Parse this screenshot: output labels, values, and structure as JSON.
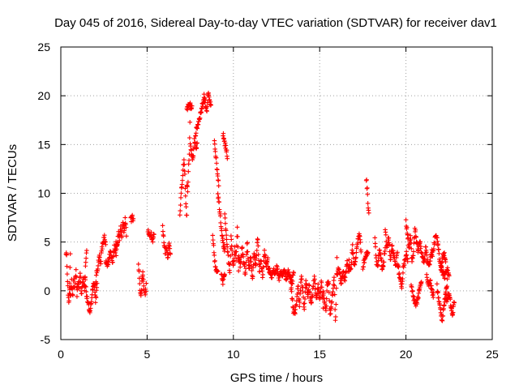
{
  "chart_data": {
    "type": "scatter",
    "title": "Day 045 of 2016, Sidereal Day-to-day VTEC variation (SDTVAR) for receiver dav1",
    "xlabel": "GPS time / hours",
    "ylabel": "SDTVAR / TECUs",
    "xlim": [
      0,
      25
    ],
    "ylim": [
      -5,
      25
    ],
    "xticks": [
      "0",
      "5",
      "10",
      "15",
      "20",
      "25"
    ],
    "yticks": [
      "-5",
      "0",
      "5",
      "10",
      "15",
      "20",
      "25"
    ],
    "grid": true,
    "marker": "plus",
    "series": [
      {
        "name": "SDTVAR",
        "color": "#ff0000",
        "segments": [
          {
            "x0": 0.3,
            "x1": 0.55,
            "y": [
              4.0,
              3.3,
              1.5,
              -0.5,
              -1.5,
              0.5,
              3.5
            ]
          },
          {
            "x0": 0.5,
            "x1": 1.5,
            "y": [
              0.5,
              -0.5,
              1.0,
              -0.8,
              1.5,
              0.0,
              2.2,
              -0.4,
              1.0,
              0.2,
              2.0,
              -0.5,
              0.8,
              1.2,
              0.0,
              3.0,
              4.3
            ]
          },
          {
            "x0": 1.4,
            "x1": 2.1,
            "y": [
              1.5,
              -0.5,
              -1.2,
              -2.3,
              -1.5,
              0.2,
              1.0,
              -1.0,
              0.5
            ]
          },
          {
            "x0": 2.0,
            "x1": 2.6,
            "y": [
              0.5,
              1.8,
              2.5,
              3.6,
              2.8,
              4.2,
              5.0,
              5.5,
              4.5
            ]
          },
          {
            "x0": 2.6,
            "x1": 3.3,
            "y": [
              3.0,
              2.5,
              3.5,
              4.0,
              3.0,
              4.5,
              3.8,
              5.0
            ]
          },
          {
            "x0": 3.2,
            "x1": 3.8,
            "y": [
              5.0,
              4.5,
              6.0,
              5.2,
              6.5,
              5.5,
              7.0,
              6.0,
              7.5,
              5.8
            ]
          },
          {
            "x0": 4.05,
            "x1": 4.2,
            "y": [
              7.5,
              7.3,
              7.6,
              7.4
            ]
          },
          {
            "x0": 4.5,
            "x1": 4.75,
            "y": [
              2.5,
              1.5,
              0.0,
              -0.7,
              1.0,
              2.0
            ]
          },
          {
            "x0": 4.75,
            "x1": 4.95,
            "y": [
              1.5,
              0.5,
              -0.5,
              0.5
            ]
          },
          {
            "x0": 5.05,
            "x1": 5.4,
            "y": [
              6.2,
              5.5,
              6.0,
              5.2,
              5.8
            ]
          },
          {
            "x0": 5.9,
            "x1": 6.35,
            "y": [
              6.5,
              5.0,
              4.0,
              4.5,
              3.5,
              4.8,
              3.8
            ]
          },
          {
            "x0": 6.9,
            "x1": 7.3,
            "y": [
              8.0,
              9.5,
              10.8,
              11.8,
              13.5,
              12.0,
              9.0,
              7.5
            ]
          },
          {
            "x0": 7.3,
            "x1": 7.5,
            "y": [
              11.0,
              10.2,
              12.5,
              14.2,
              19.0
            ]
          },
          {
            "x0": 7.3,
            "x1": 7.6,
            "y": [
              18.5,
              19.2,
              18.8,
              19.0
            ]
          },
          {
            "x0": 7.5,
            "x1": 7.9,
            "y": [
              15.0,
              14.0,
              13.5,
              15.5,
              14.5,
              15.2
            ]
          },
          {
            "x0": 7.8,
            "x1": 8.3,
            "y": [
              16.0,
              16.8,
              17.5,
              18.2,
              19.0,
              19.8
            ]
          },
          {
            "x0": 8.3,
            "x1": 8.7,
            "y": [
              20.0,
              19.2,
              18.5,
              20.2,
              19.5,
              18.8
            ]
          },
          {
            "x0": 8.8,
            "x1": 9.1,
            "y": [
              5.5,
              4.0,
              2.5,
              1.8,
              2.2
            ]
          },
          {
            "x0": 8.9,
            "x1": 9.15,
            "y": [
              15.5,
              13.0,
              11.0
            ]
          },
          {
            "x0": 9.1,
            "x1": 9.5,
            "y": [
              10.0,
              8.5,
              6.5,
              5.0,
              4.0
            ]
          },
          {
            "x0": 9.3,
            "x1": 9.5,
            "y": [
              1.5,
              0.8,
              1.8
            ]
          },
          {
            "x0": 9.4,
            "x1": 9.65,
            "y": [
              16.0,
              15.0,
              13.8
            ]
          },
          {
            "x0": 9.5,
            "x1": 10.3,
            "y": [
              8.0,
              6.0,
              4.5,
              3.0,
              2.0,
              5.5,
              3.5,
              2.5,
              4.5,
              3.0,
              6.5,
              2.0
            ]
          },
          {
            "x0": 10.3,
            "x1": 12.0,
            "y": [
              3.5,
              2.5,
              4.5,
              3.0,
              1.5,
              5.0,
              2.0,
              3.5,
              1.0,
              4.0,
              2.5,
              5.5,
              2.0,
              3.0,
              1.5,
              4.0,
              2.5,
              3.5
            ]
          },
          {
            "x0": 12.0,
            "x1": 13.5,
            "y": [
              2.5,
              2.0,
              1.5,
              2.2,
              1.8,
              2.5,
              1.2,
              2.0,
              1.5,
              2.3,
              1.0,
              2.0,
              1.5,
              0.8,
              2.0
            ]
          },
          {
            "x0": 13.3,
            "x1": 14.2,
            "y": [
              1.0,
              -0.5,
              -2.0,
              -2.5,
              -1.0,
              0.5,
              -1.5,
              1.5,
              0.0,
              -2.0,
              1.0
            ]
          },
          {
            "x0": 14.2,
            "x1": 15.2,
            "y": [
              1.0,
              -0.5,
              0.5,
              -1.5,
              0.0,
              1.5,
              -1.0,
              0.5,
              -0.8,
              1.0,
              -1.5
            ]
          },
          {
            "x0": 15.2,
            "x1": 16.0,
            "y": [
              0.0,
              -1.0,
              -2.0,
              0.5,
              1.0,
              -2.5,
              -1.5,
              0.0,
              1.5,
              -3.5,
              3.2
            ]
          },
          {
            "x0": 16.0,
            "x1": 16.7,
            "y": [
              1.5,
              2.5,
              0.8,
              2.0,
              1.0,
              3.0,
              2.0
            ]
          },
          {
            "x0": 16.7,
            "x1": 17.4,
            "y": [
              3.0,
              2.0,
              4.5,
              2.5,
              3.5,
              5.0,
              6.0,
              4.0
            ]
          },
          {
            "x0": 17.5,
            "x1": 17.8,
            "y": [
              2.5,
              3.5,
              4.0
            ]
          },
          {
            "x0": 17.7,
            "x1": 17.85,
            "y": [
              11.5,
              10.5,
              9.0,
              8.0
            ]
          },
          {
            "x0": 18.2,
            "x1": 18.8,
            "y": [
              5.5,
              3.0,
              2.5,
              4.0,
              3.5,
              2.0,
              3.0,
              4.5
            ]
          },
          {
            "x0": 18.8,
            "x1": 19.5,
            "y": [
              6.0,
              4.5,
              5.5,
              3.0,
              4.5,
              3.5,
              2.5,
              4.0
            ]
          },
          {
            "x0": 19.5,
            "x1": 20.1,
            "y": [
              3.0,
              2.0,
              1.0,
              0.0,
              2.5,
              3.0,
              4.0,
              2.8
            ]
          },
          {
            "x0": 20.0,
            "x1": 20.7,
            "y": [
              7.0,
              6.0,
              4.5,
              5.5,
              3.0,
              4.0,
              6.5,
              5.0,
              4.2
            ]
          },
          {
            "x0": 20.3,
            "x1": 20.9,
            "y": [
              0.5,
              -0.5,
              -1.5,
              -1.0,
              0.0,
              1.0
            ]
          },
          {
            "x0": 20.7,
            "x1": 21.5,
            "y": [
              4.0,
              5.0,
              3.5,
              3.0,
              4.5,
              2.5,
              3.0,
              4.0
            ]
          },
          {
            "x0": 21.2,
            "x1": 21.6,
            "y": [
              1.5,
              0.5,
              1.0,
              0.0,
              -0.5
            ]
          },
          {
            "x0": 21.5,
            "x1": 22.3,
            "y": [
              3.5,
              4.5,
              6.0,
              5.0,
              3.0,
              2.5,
              4.0,
              3.0
            ]
          },
          {
            "x0": 21.8,
            "x1": 22.4,
            "y": [
              0.5,
              -1.0,
              -2.0,
              -3.0,
              -1.5,
              -0.5,
              1.0
            ]
          },
          {
            "x0": 22.0,
            "x1": 22.5,
            "y": [
              2.5,
              2.0,
              1.5,
              2.2,
              1.8
            ]
          },
          {
            "x0": 22.3,
            "x1": 22.8,
            "y": [
              -0.5,
              -1.0,
              -0.2,
              -1.5,
              -2.5,
              -1.0
            ]
          }
        ]
      }
    ]
  }
}
